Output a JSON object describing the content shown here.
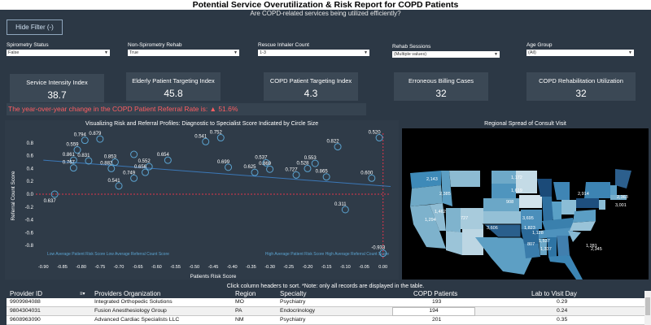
{
  "header": {
    "title": "Potential Service Overutilization & Risk Report for COPD Patients",
    "subtitle": "Are COPD-related services being utilized efficiently?"
  },
  "hide_filter_label": "Hide Filter (-)",
  "filters": [
    {
      "label": "Spirometry Status",
      "value": "False"
    },
    {
      "label": "Non-Spirometry Rehab",
      "value": "True"
    },
    {
      "label": "Rescue Inhaler Count",
      "value": "1-3"
    },
    {
      "label": "Rehab Sessions",
      "value": "(Multiple values)"
    },
    {
      "label": "Age Group",
      "value": "(All)"
    }
  ],
  "kpis": [
    {
      "label": "Service Intensity Index",
      "value": "38.7"
    },
    {
      "label": "Elderly Patient Targeting Index",
      "value": "45.8"
    },
    {
      "label": "COPD Patient Targeting Index",
      "value": "4.3"
    },
    {
      "label": "Erroneous Billing Cases",
      "value": "32"
    },
    {
      "label": "COPD Rehabilitation Utilization",
      "value": "32"
    }
  ],
  "yoy_banner": "The year-over-year change in the COPD Patient Referral Rate is:  ▲ 51.6%",
  "scatter_title": "Visualizing Risk and Referral Profiles: Diagnostic to Specialist Score Indicated by Circle Size",
  "map": {
    "title": "Regional Spread of Consult Visit",
    "labels": [
      "2,143",
      "2,385",
      "1,462",
      "727",
      "1,294",
      "1,172",
      "1,619",
      "3,695",
      "908",
      "2,914",
      "3,001",
      "2,363",
      "1,823",
      "3,606",
      "807",
      "1,128",
      "1,537",
      "1,337",
      "2,345",
      "1,281"
    ]
  },
  "chart_data": {
    "type": "scatter",
    "title": "Visualizing Risk and Referral Profiles: Diagnostic to Specialist Score Indicated by Circle Size",
    "xlabel": "Patients Risk Score",
    "ylabel": "Referral Count Score",
    "xlim": [
      -0.92,
      0.02
    ],
    "ylim": [
      -1.0,
      0.95
    ],
    "xticks": [
      "-0.90",
      "-0.85",
      "-0.80",
      "-0.75",
      "-0.70",
      "-0.65",
      "-0.60",
      "-0.55",
      "-0.50",
      "-0.45",
      "-0.40",
      "-0.35",
      "-0.30",
      "-0.25",
      "-0.20",
      "-0.15",
      "-0.10",
      "-0.05",
      "0.00"
    ],
    "yticks": [
      "0.8",
      "0.6",
      "0.4",
      "0.2",
      "0.0",
      "-0.2",
      "-0.4",
      "-0.6",
      "-0.8"
    ],
    "reference_lines": {
      "x": 0.0,
      "y": 0.0
    },
    "quadrant_labels": [
      "Low Average Patient Risk Score Low Average Referral Count Score",
      "High Average Patient Risk Score High Average Referral Count Score"
    ],
    "trendline": {
      "x": [
        -0.9,
        0.02
      ],
      "y": [
        0.53,
        0.12
      ]
    },
    "points": [
      {
        "x": -0.79,
        "y": 0.84,
        "size": 4,
        "label": "0.794"
      },
      {
        "x": -0.75,
        "y": 0.86,
        "size": 4,
        "label": "0.879"
      },
      {
        "x": -0.81,
        "y": 0.69,
        "size": 4,
        "label": "0.559"
      },
      {
        "x": -0.82,
        "y": 0.53,
        "size": 4,
        "label": "0.861"
      },
      {
        "x": -0.78,
        "y": 0.52,
        "size": 4,
        "label": "0.831"
      },
      {
        "x": -0.71,
        "y": 0.5,
        "size": 4,
        "label": "0.853"
      },
      {
        "x": -0.82,
        "y": 0.41,
        "size": 4,
        "label": "0.767"
      },
      {
        "x": -0.72,
        "y": 0.4,
        "size": 4,
        "label": "0.882"
      },
      {
        "x": -0.66,
        "y": 0.62,
        "size": 4,
        "label": ""
      },
      {
        "x": -0.62,
        "y": 0.43,
        "size": 4,
        "label": "0.552"
      },
      {
        "x": -0.57,
        "y": 0.53,
        "size": 4,
        "label": "0.654"
      },
      {
        "x": -0.63,
        "y": 0.34,
        "size": 4,
        "label": "0.656"
      },
      {
        "x": -0.66,
        "y": 0.25,
        "size": 4,
        "label": "0.749"
      },
      {
        "x": -0.7,
        "y": 0.13,
        "size": 4,
        "label": "0.541"
      },
      {
        "x": -0.87,
        "y": 0.0,
        "size": 4,
        "label": "0.637"
      },
      {
        "x": -0.47,
        "y": 0.82,
        "size": 4,
        "label": "0.541"
      },
      {
        "x": -0.43,
        "y": 0.88,
        "size": 4,
        "label": "0.752"
      },
      {
        "x": -0.41,
        "y": 0.42,
        "size": 4,
        "label": "0.699"
      },
      {
        "x": -0.34,
        "y": 0.34,
        "size": 4,
        "label": "0.625"
      },
      {
        "x": -0.31,
        "y": 0.49,
        "size": 4,
        "label": "0.537"
      },
      {
        "x": -0.3,
        "y": 0.39,
        "size": 4,
        "label": "0.869"
      },
      {
        "x": -0.23,
        "y": 0.3,
        "size": 4,
        "label": "0.727"
      },
      {
        "x": -0.2,
        "y": 0.4,
        "size": 4,
        "label": "0.528"
      },
      {
        "x": -0.18,
        "y": 0.48,
        "size": 4,
        "label": "0.553"
      },
      {
        "x": -0.15,
        "y": 0.27,
        "size": 4,
        "label": "0.865"
      },
      {
        "x": -0.12,
        "y": 0.74,
        "size": 4,
        "label": "0.822"
      },
      {
        "x": -0.01,
        "y": 0.88,
        "size": 4,
        "label": "0.520"
      },
      {
        "x": -0.03,
        "y": 0.25,
        "size": 4,
        "label": "0.600"
      },
      {
        "x": -0.1,
        "y": -0.24,
        "size": 4,
        "label": "0.311"
      },
      {
        "x": 0.0,
        "y": -0.92,
        "size": 4,
        "label": "-0.933"
      }
    ]
  },
  "table": {
    "note": "Click column headers to sort. *Note: only all records are displayed in the table.",
    "columns": [
      "Provider ID",
      "Providers Organization",
      "Region",
      "Specialty",
      "COPD Patients",
      "Lab to Visit Day"
    ],
    "rows": [
      [
        "9909984088",
        "Integrated Orthopedic Solutions",
        "MO",
        "Psychiatry",
        "193",
        "0.29"
      ],
      [
        "9804304031",
        "Fusion Anesthesiology Group",
        "PA",
        "Endocrinology",
        "194",
        "0.24"
      ],
      [
        "9608963090",
        "Advanced Cardiac Specialists LLC",
        "NM",
        "Psychiatry",
        "201",
        "0.35"
      ]
    ]
  },
  "colors": {
    "background": "#2c3845",
    "point": "#5ba3d0",
    "trend": "#3b78b8",
    "refline": "#e0344a",
    "banner_text": "#ff5e62"
  }
}
